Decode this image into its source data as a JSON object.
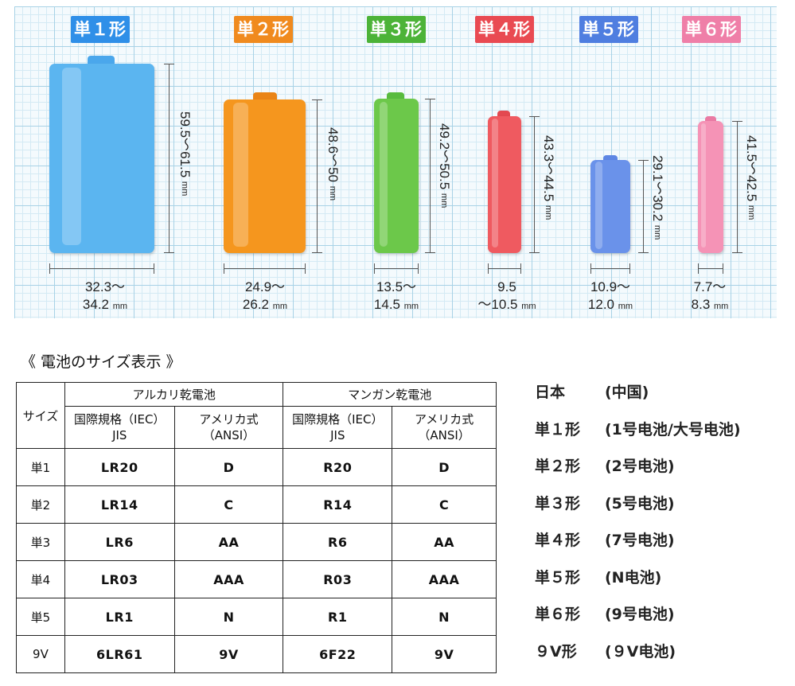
{
  "batteries": [
    {
      "name": "単１形",
      "color": "#2f8fe8",
      "body": "#5bb5f0",
      "height": "59.5～61.5",
      "width_l1": "32.3～",
      "width_l2": "34.2",
      "unit": "mm"
    },
    {
      "name": "単２形",
      "color": "#f08a1e",
      "body": "#f5961e",
      "height": "48.6～50",
      "width_l1": "24.9～",
      "width_l2": "26.2",
      "unit": "mm"
    },
    {
      "name": "単３形",
      "color": "#4cb338",
      "body": "#6cc84a",
      "height": "49.2～50.5",
      "width_l1": "13.5～",
      "width_l2": "14.5",
      "unit": "mm"
    },
    {
      "name": "単４形",
      "color": "#e94a52",
      "body": "#ef5a60",
      "height": "43.3～44.5",
      "width_l1": "9.5",
      "width_l2": "～10.5",
      "unit": "mm"
    },
    {
      "name": "単５形",
      "color": "#4f7ee0",
      "body": "#6a92ea",
      "height": "29.1～30.2",
      "width_l1": "10.9～",
      "width_l2": "12.0",
      "unit": "mm"
    },
    {
      "name": "単６形",
      "color": "#ef7fa8",
      "body": "#f593b6",
      "height": "41.5～42.5",
      "width_l1": "7.7～",
      "width_l2": "8.3",
      "unit": "mm"
    }
  ],
  "heading": "《 電池のサイズ表示 》",
  "table": {
    "size_header": "サイズ",
    "alkaline_header": "アルカリ乾電池",
    "manganese_header": "マンガン乾電池",
    "iec_l1": "国際規格（IEC）",
    "iec_l2": "JIS",
    "ansi_l1": "アメリカ式",
    "ansi_l2": "（ANSI）",
    "rows": [
      {
        "size": "単1",
        "alk_iec": "LR20",
        "alk_ansi": "D",
        "man_iec": "R20",
        "man_ansi": "D"
      },
      {
        "size": "単2",
        "alk_iec": "LR14",
        "alk_ansi": "C",
        "man_iec": "R14",
        "man_ansi": "C"
      },
      {
        "size": "単3",
        "alk_iec": "LR6",
        "alk_ansi": "AA",
        "man_iec": "R6",
        "man_ansi": "AA"
      },
      {
        "size": "単4",
        "alk_iec": "LR03",
        "alk_ansi": "AAA",
        "man_iec": "R03",
        "man_ansi": "AAA"
      },
      {
        "size": "単5",
        "alk_iec": "LR1",
        "alk_ansi": "N",
        "man_iec": "R1",
        "man_ansi": "N"
      },
      {
        "size": "9V",
        "alk_iec": "6LR61",
        "alk_ansi": "9V",
        "man_iec": "6F22",
        "man_ansi": "9V"
      }
    ]
  },
  "mapping": [
    {
      "jp": "日本",
      "cn": "(中国)"
    },
    {
      "jp": "単１形",
      "cn": "(1号电池/大号电池)"
    },
    {
      "jp": "単２形",
      "cn": "(2号电池)"
    },
    {
      "jp": "単３形",
      "cn": "(5号电池)"
    },
    {
      "jp": "単４形",
      "cn": "(7号电池)"
    },
    {
      "jp": "単５形",
      "cn": "(N电池)"
    },
    {
      "jp": "単６形",
      "cn": "(9号电池)"
    },
    {
      "jp": "９V形",
      "cn": "(９V电池)"
    }
  ]
}
